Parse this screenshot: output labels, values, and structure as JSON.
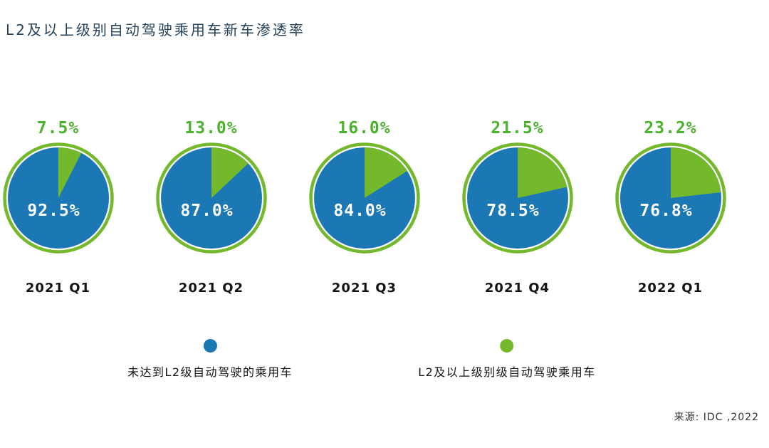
{
  "title": "L2及以上级别自动驾驶乘用车新车渗透率",
  "source": "来源: IDC ,2022",
  "colors": {
    "blue": "#1B78B4",
    "green": "#74B92C",
    "green_text": "#4CB12E",
    "title_text": "#26425A"
  },
  "legend": [
    {
      "label": "未达到L2级自动驾驶的乘用车",
      "color_key": "blue"
    },
    {
      "label": "L2及以上级别级自动驾驶乘用车",
      "color_key": "green"
    }
  ],
  "chart_data": {
    "type": "pie",
    "title": "L2及以上级别自动驾驶乘用车新车渗透率",
    "categories": [
      "2021 Q1",
      "2021 Q2",
      "2021 Q3",
      "2021 Q4",
      "2022 Q1"
    ],
    "series": [
      {
        "name": "未达到L2级自动驾驶的乘用车",
        "values": [
          92.5,
          87.0,
          84.0,
          78.5,
          76.8
        ]
      },
      {
        "name": "L2及以上级别级自动驾驶乘用车",
        "values": [
          7.5,
          13.0,
          16.0,
          21.5,
          23.2
        ]
      }
    ],
    "legend_position": "bottom",
    "pies": [
      {
        "quarter": "2021 Q1",
        "green_value": 7.5,
        "blue_value": 92.5,
        "green_label": "7.5%",
        "blue_label": "92.5%"
      },
      {
        "quarter": "2021 Q2",
        "green_value": 13.0,
        "blue_value": 87.0,
        "green_label": "13.0%",
        "blue_label": "87.0%"
      },
      {
        "quarter": "2021 Q3",
        "green_value": 16.0,
        "blue_value": 84.0,
        "green_label": "16.0%",
        "blue_label": "84.0%"
      },
      {
        "quarter": "2021 Q4",
        "green_value": 21.5,
        "blue_value": 78.5,
        "green_label": "21.5%",
        "blue_label": "78.5%"
      },
      {
        "quarter": "2022 Q1",
        "green_value": 23.2,
        "blue_value": 76.8,
        "green_label": "23.2%",
        "blue_label": "76.8%"
      }
    ]
  }
}
